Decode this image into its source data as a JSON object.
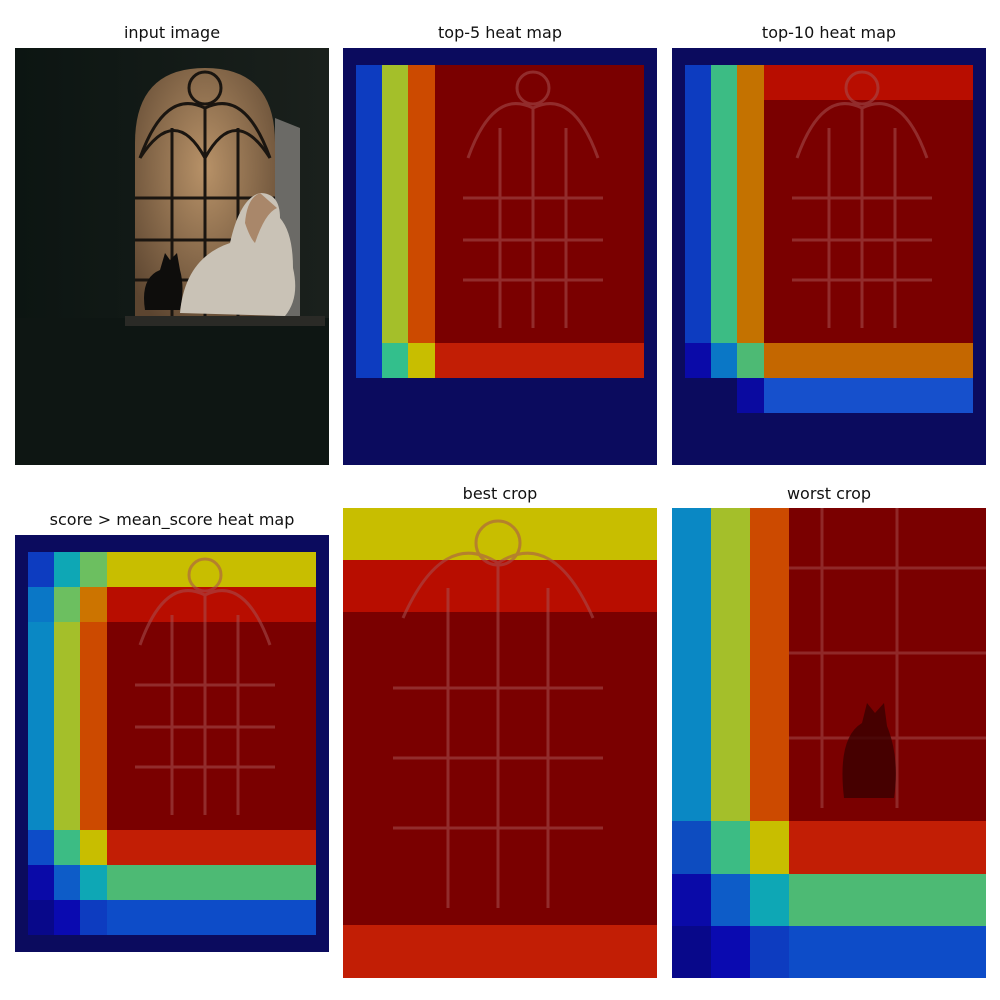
{
  "panels": [
    {
      "title": "input image"
    },
    {
      "title": "top-5 heat map"
    },
    {
      "title": "top-10 heat map"
    },
    {
      "title": "score > mean_score heat map"
    },
    {
      "title": "best crop"
    },
    {
      "title": "worst crop"
    }
  ],
  "colors": {
    "background_navy": "#0b0b5e",
    "deep_red": "#7a0000",
    "red": "#c21e05",
    "orange": "#cc4a00",
    "yellow": "#c8be00",
    "lime": "#a4bf2a",
    "green": "#4dba74",
    "teal": "#0ea7b5",
    "cyan_blue": "#0a88c4",
    "blue": "#0d3cc0",
    "dark_blue": "#0a0aa8"
  }
}
